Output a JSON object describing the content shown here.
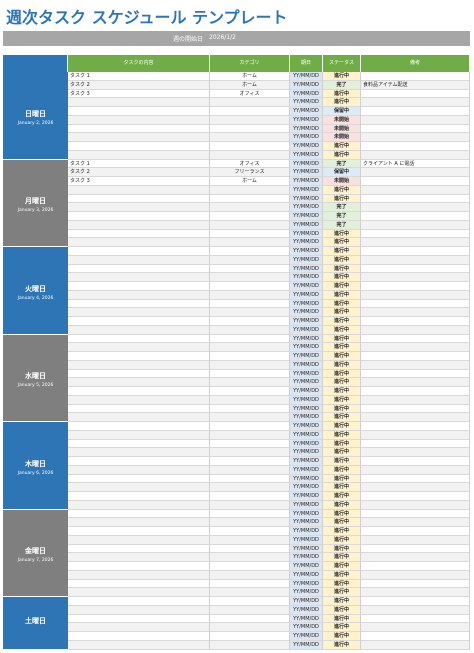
{
  "header": {
    "title": "週次タスク スケジュール テンプレート",
    "week_start_label": "週の開始日",
    "week_start": "2026/1/2"
  },
  "table": {
    "columns": [
      "タスクの内容",
      "カテゴリ",
      "期日",
      "ステータス",
      "備考"
    ],
    "days": [
      {
        "name": "日曜日",
        "date": "January 2, 2026",
        "rows": [
          {
            "task": "タスク 1",
            "category": "ホーム",
            "due": "YY/MM/DD",
            "status": "進行中"
          },
          {
            "task": "タスク 2",
            "category": "ホーム",
            "due": "YY/MM/DD",
            "status": "完了",
            "note": "食料品アイテム配送"
          },
          {
            "task": "タスク 3",
            "category": "オフィス",
            "due": "YY/MM/DD",
            "status": "進行中"
          },
          {
            "due": "YY/MM/DD",
            "status": "進行中"
          },
          {
            "due": "YY/MM/DD",
            "status": "保留中"
          },
          {
            "due": "YY/MM/DD",
            "status": "未開始"
          },
          {
            "due": "YY/MM/DD",
            "status": "未開始"
          },
          {
            "due": "YY/MM/DD",
            "status": "未開始"
          },
          {
            "due": "YY/MM/DD",
            "status": "進行中"
          },
          {
            "due": "YY/MM/DD",
            "status": "進行中"
          }
        ]
      },
      {
        "name": "月曜日",
        "date": "January 3, 2026",
        "rows": [
          {
            "task": "タスク 1",
            "category": "オフィス",
            "due": "YY/MM/DD",
            "status": "完了",
            "note": "クライアント A に電話"
          },
          {
            "task": "タスク 2",
            "category": "フリーランス",
            "due": "YY/MM/DD",
            "status": "保留中"
          },
          {
            "task": "タスク 3",
            "category": "ホーム",
            "due": "YY/MM/DD",
            "status": "未開始"
          },
          {
            "due": "YY/MM/DD",
            "status": "進行中"
          },
          {
            "due": "YY/MM/DD",
            "status": "進行中"
          },
          {
            "due": "YY/MM/DD",
            "status": "完了"
          },
          {
            "due": "YY/MM/DD",
            "status": "完了"
          },
          {
            "due": "YY/MM/DD",
            "status": "完了"
          },
          {
            "due": "YY/MM/DD",
            "status": "進行中"
          },
          {
            "due": "YY/MM/DD",
            "status": "進行中"
          }
        ]
      },
      {
        "name": "火曜日",
        "date": "January 4, 2026",
        "rows": [
          {
            "due": "YY/MM/DD",
            "status": "進行中"
          },
          {
            "due": "YY/MM/DD",
            "status": "進行中"
          },
          {
            "due": "YY/MM/DD",
            "status": "進行中"
          },
          {
            "due": "YY/MM/DD",
            "status": "進行中"
          },
          {
            "due": "YY/MM/DD",
            "status": "進行中"
          },
          {
            "due": "YY/MM/DD",
            "status": "進行中"
          },
          {
            "due": "YY/MM/DD",
            "status": "進行中"
          },
          {
            "due": "YY/MM/DD",
            "status": "進行中"
          },
          {
            "due": "YY/MM/DD",
            "status": "進行中"
          },
          {
            "due": "YY/MM/DD",
            "status": "進行中"
          }
        ]
      },
      {
        "name": "水曜日",
        "date": "January 5, 2026",
        "rows": [
          {
            "due": "YY/MM/DD",
            "status": "進行中"
          },
          {
            "due": "YY/MM/DD",
            "status": "進行中"
          },
          {
            "due": "YY/MM/DD",
            "status": "進行中"
          },
          {
            "due": "YY/MM/DD",
            "status": "進行中"
          },
          {
            "due": "YY/MM/DD",
            "status": "進行中"
          },
          {
            "due": "YY/MM/DD",
            "status": "進行中"
          },
          {
            "due": "YY/MM/DD",
            "status": "進行中"
          },
          {
            "due": "YY/MM/DD",
            "status": "進行中"
          },
          {
            "due": "YY/MM/DD",
            "status": "進行中"
          },
          {
            "due": "YY/MM/DD",
            "status": "進行中"
          }
        ]
      },
      {
        "name": "木曜日",
        "date": "January 6, 2026",
        "rows": [
          {
            "due": "YY/MM/DD",
            "status": "進行中"
          },
          {
            "due": "YY/MM/DD",
            "status": "進行中"
          },
          {
            "due": "YY/MM/DD",
            "status": "進行中"
          },
          {
            "due": "YY/MM/DD",
            "status": "進行中"
          },
          {
            "due": "YY/MM/DD",
            "status": "進行中"
          },
          {
            "due": "YY/MM/DD",
            "status": "進行中"
          },
          {
            "due": "YY/MM/DD",
            "status": "進行中"
          },
          {
            "due": "YY/MM/DD",
            "status": "進行中"
          },
          {
            "due": "YY/MM/DD",
            "status": "進行中"
          },
          {
            "due": "YY/MM/DD",
            "status": "進行中"
          }
        ]
      },
      {
        "name": "金曜日",
        "date": "January 7, 2026",
        "rows": [
          {
            "due": "YY/MM/DD",
            "status": "進行中"
          },
          {
            "due": "YY/MM/DD",
            "status": "進行中"
          },
          {
            "due": "YY/MM/DD",
            "status": "進行中"
          },
          {
            "due": "YY/MM/DD",
            "status": "進行中"
          },
          {
            "due": "YY/MM/DD",
            "status": "進行中"
          },
          {
            "due": "YY/MM/DD",
            "status": "進行中"
          },
          {
            "due": "YY/MM/DD",
            "status": "進行中"
          },
          {
            "due": "YY/MM/DD",
            "status": "進行中"
          },
          {
            "due": "YY/MM/DD",
            "status": "進行中"
          },
          {
            "due": "YY/MM/DD",
            "status": "進行中"
          }
        ]
      },
      {
        "name": "土曜日",
        "rows": [
          {
            "due": "YY/MM/DD",
            "status": "進行中"
          },
          {
            "due": "YY/MM/DD",
            "status": "進行中"
          },
          {
            "due": "YY/MM/DD",
            "status": "進行中"
          },
          {
            "due": "YY/MM/DD",
            "status": "進行中"
          },
          {
            "due": "YY/MM/DD",
            "status": "進行中"
          },
          {
            "due": "YY/MM/DD",
            "status": "進行中"
          }
        ]
      }
    ]
  }
}
